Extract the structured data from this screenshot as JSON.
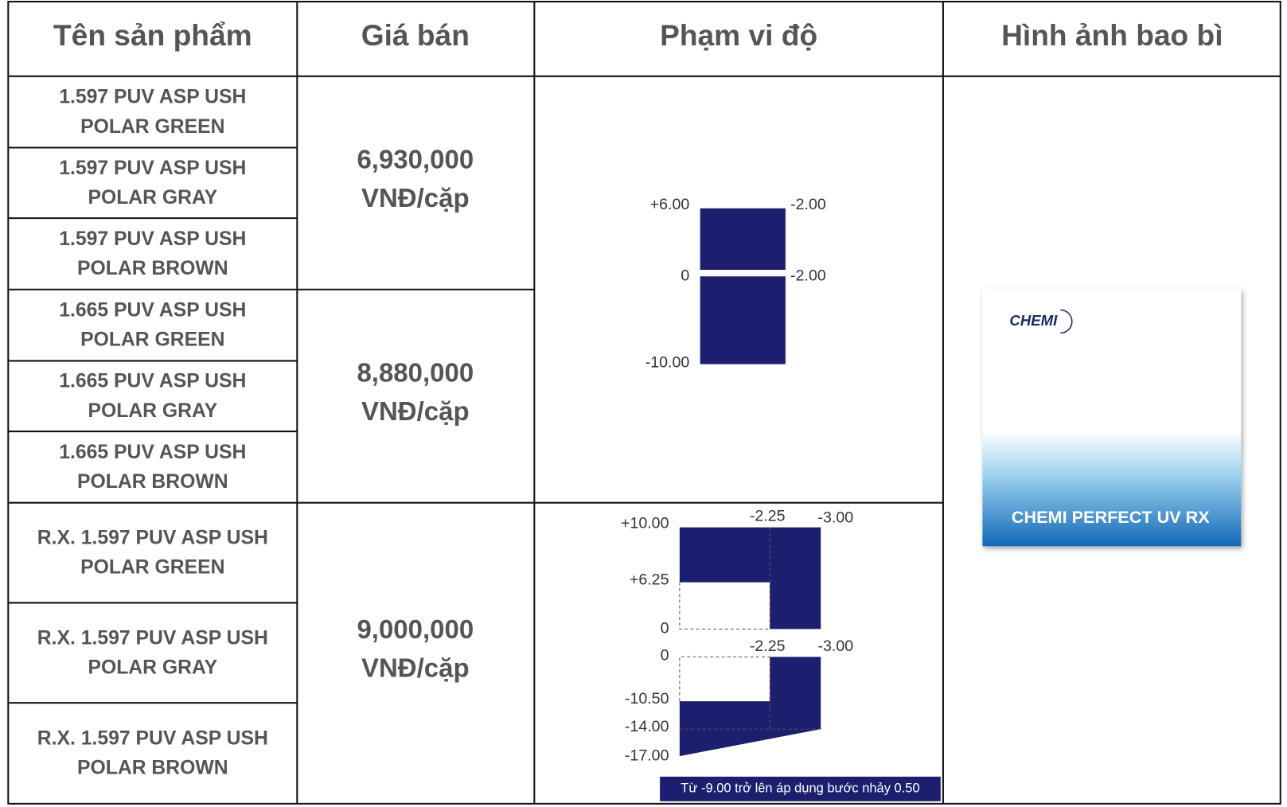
{
  "header": {
    "columns": [
      "Tên sản phẩm",
      "Giá bán",
      "Phạm vi độ",
      "Hình ảnh bao bì"
    ]
  },
  "products": [
    {
      "line1": "1.597 PUV ASP USH",
      "line2": "POLAR GREEN"
    },
    {
      "line1": "1.597 PUV ASP USH",
      "line2": "POLAR GRAY"
    },
    {
      "line1": "1.597 PUV ASP USH",
      "line2": "POLAR BROWN"
    },
    {
      "line1": "1.665 PUV ASP USH",
      "line2": "POLAR GREEN"
    },
    {
      "line1": "1.665 PUV ASP USH",
      "line2": "POLAR GRAY"
    },
    {
      "line1": "1.665 PUV ASP USH",
      "line2": "POLAR BROWN"
    },
    {
      "line1": "R.X. 1.597 PUV ASP USH",
      "line2": "POLAR GREEN"
    },
    {
      "line1": "R.X. 1.597 PUV ASP USH",
      "line2": "POLAR GRAY"
    },
    {
      "line1": "R.X. 1.597 PUV ASP USH",
      "line2": "POLAR BROWN"
    }
  ],
  "prices": [
    {
      "amount": "6,930,000",
      "unit": "VNĐ/cặp"
    },
    {
      "amount": "8,880,000",
      "unit": "VNĐ/cặp"
    },
    {
      "amount": "9,000,000",
      "unit": "VNĐ/cặp"
    }
  ],
  "range_stock": {
    "labels": [
      "+6.00",
      "-2.00",
      "0",
      "-2.00",
      "-10.00"
    ]
  },
  "range_rx": {
    "labels": [
      "+10.00",
      "-2.25",
      "-3.00",
      "+6.25",
      "0",
      "0",
      "-2.25",
      "-3.00",
      "-10.50",
      "-14.00",
      "-17.00"
    ],
    "note": "Từ -9.00 trở lên áp dụng bước nhảy 0.50"
  },
  "package": {
    "brand": "CHEMI",
    "product_name": "CHEMI PERFECT UV RX"
  }
}
